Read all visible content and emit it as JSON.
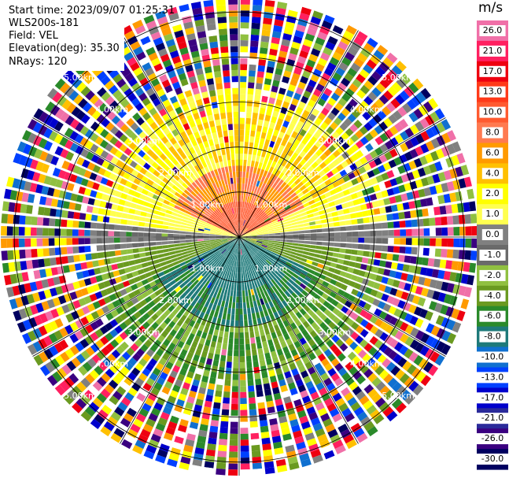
{
  "header": {
    "start_time": "Start time: 2023/09/07 01:25:31",
    "instrument": "WLS200s-181",
    "field": "Field: VEL",
    "elevation": "Elevation(deg): 35.30",
    "nrays": "NRays: 120"
  },
  "colorbar": {
    "unit": "m/s",
    "ticks": [
      "26.0",
      "21.0",
      "17.0",
      "13.0",
      "10.0",
      "8.0",
      "6.0",
      "4.0",
      "2.0",
      "1.0",
      "0.0",
      "-1.0",
      "-2.0",
      "-4.0",
      "-6.0",
      "-8.0",
      "-10.0",
      "-13.0",
      "-17.0",
      "-21.0",
      "-26.0",
      "-30.0"
    ],
    "colors": [
      "#f070a8",
      "#ff2060",
      "#ee0010",
      "#ff3a1a",
      "#ff5a30",
      "#ff7a50",
      "#ff9a00",
      "#ffc000",
      "#ffff00",
      "#ffff50",
      "#808080",
      "#6a6a6a",
      "#90c040",
      "#6a9a20",
      "#2a8a2a",
      "#1e7a7a",
      "#1070d0",
      "#0040ff",
      "#0000cc",
      "#2a2a9a",
      "#3a0080",
      "#000060"
    ]
  },
  "chart_data": {
    "type": "heatmap",
    "projection": "polar PPI",
    "field": "VEL",
    "units": "m/s",
    "nrays": 120,
    "range_ring_labels": [
      "1.00km",
      "2.00km",
      "3.00km",
      "4.00km",
      "5.00km"
    ],
    "range_rings_km": [
      1,
      2,
      3,
      4,
      5
    ],
    "max_range_km": 5.3,
    "pattern": "positive velocities (yellow/orange) in the northern half, near-zero (gray) along the east-west axis, negative velocities (green/teal) in the southern half, noisy multi-colored returns beyond about 3 km"
  }
}
